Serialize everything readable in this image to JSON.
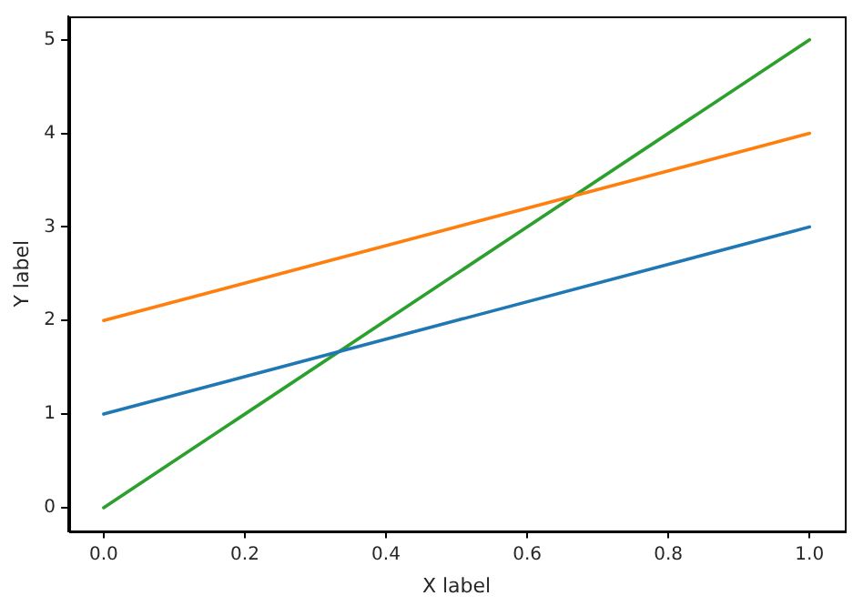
{
  "chart_data": {
    "type": "line",
    "xlabel": "X label",
    "ylabel": "Y label",
    "x": [
      0,
      1
    ],
    "series": [
      {
        "color": "#1f77b4",
        "values": [
          1,
          3
        ]
      },
      {
        "color": "#ff7f0e",
        "values": [
          2,
          4
        ]
      },
      {
        "color": "#2ca02c",
        "values": [
          0,
          5
        ]
      }
    ],
    "xlim": [
      -0.05,
      1.05
    ],
    "ylim": [
      -0.25,
      5.25
    ],
    "xticks": [
      {
        "value": 0,
        "label": "0.0"
      },
      {
        "value": 0.2,
        "label": "0.2"
      },
      {
        "value": 0.4,
        "label": "0.4"
      },
      {
        "value": 0.6,
        "label": "0.6"
      },
      {
        "value": 0.8,
        "label": "0.8"
      },
      {
        "value": 1,
        "label": "1.0"
      }
    ],
    "yticks": [
      0,
      1,
      2,
      3,
      4,
      5
    ],
    "grid": false,
    "legend": false,
    "marker": "none",
    "line_style": "solid"
  }
}
